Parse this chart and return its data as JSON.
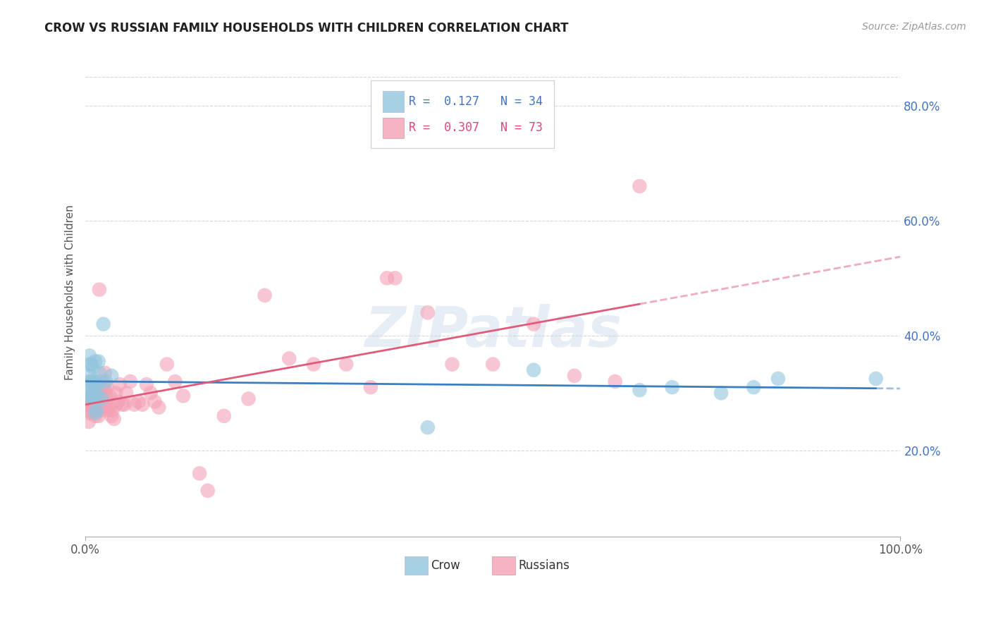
{
  "title": "CROW VS RUSSIAN FAMILY HOUSEHOLDS WITH CHILDREN CORRELATION CHART",
  "source": "Source: ZipAtlas.com",
  "ylabel": "Family Households with Children",
  "watermark": "ZIPatlas",
  "crow_R": 0.127,
  "crow_N": 34,
  "russian_R": 0.307,
  "russian_N": 73,
  "crow_color": "#92c5de",
  "russian_color": "#f4a0b5",
  "crow_line_color": "#3a7fc1",
  "russian_line_color": "#e05a7a",
  "background_color": "#ffffff",
  "grid_color": "#d8d8d8",
  "xlim": [
    0.0,
    1.0
  ],
  "ylim": [
    0.05,
    0.9
  ],
  "yticks": [
    0.2,
    0.4,
    0.6,
    0.8
  ],
  "ytick_labels": [
    "20.0%",
    "40.0%",
    "60.0%",
    "80.0%"
  ],
  "crow_x": [
    0.003,
    0.004,
    0.005,
    0.005,
    0.006,
    0.006,
    0.007,
    0.007,
    0.008,
    0.008,
    0.009,
    0.009,
    0.01,
    0.011,
    0.012,
    0.012,
    0.013,
    0.014,
    0.015,
    0.016,
    0.017,
    0.018,
    0.02,
    0.022,
    0.025,
    0.032,
    0.42,
    0.55,
    0.68,
    0.72,
    0.78,
    0.82,
    0.85,
    0.97
  ],
  "crow_y": [
    0.295,
    0.32,
    0.35,
    0.365,
    0.295,
    0.33,
    0.32,
    0.35,
    0.295,
    0.31,
    0.31,
    0.345,
    0.32,
    0.29,
    0.265,
    0.355,
    0.31,
    0.27,
    0.295,
    0.355,
    0.335,
    0.32,
    0.29,
    0.42,
    0.32,
    0.33,
    0.24,
    0.34,
    0.305,
    0.31,
    0.3,
    0.31,
    0.325,
    0.325
  ],
  "russian_x": [
    0.003,
    0.004,
    0.005,
    0.005,
    0.006,
    0.007,
    0.007,
    0.008,
    0.009,
    0.01,
    0.01,
    0.011,
    0.011,
    0.012,
    0.013,
    0.013,
    0.014,
    0.015,
    0.016,
    0.016,
    0.017,
    0.018,
    0.019,
    0.02,
    0.021,
    0.022,
    0.023,
    0.024,
    0.025,
    0.026,
    0.027,
    0.028,
    0.029,
    0.03,
    0.032,
    0.033,
    0.035,
    0.037,
    0.038,
    0.04,
    0.042,
    0.045,
    0.048,
    0.05,
    0.055,
    0.06,
    0.065,
    0.07,
    0.075,
    0.08,
    0.085,
    0.09,
    0.1,
    0.11,
    0.12,
    0.14,
    0.15,
    0.17,
    0.2,
    0.22,
    0.25,
    0.28,
    0.32,
    0.35,
    0.37,
    0.38,
    0.42,
    0.45,
    0.5,
    0.55,
    0.6,
    0.65,
    0.68
  ],
  "russian_y": [
    0.27,
    0.25,
    0.27,
    0.29,
    0.265,
    0.275,
    0.29,
    0.285,
    0.28,
    0.27,
    0.31,
    0.28,
    0.32,
    0.26,
    0.275,
    0.31,
    0.285,
    0.285,
    0.26,
    0.28,
    0.48,
    0.3,
    0.31,
    0.27,
    0.29,
    0.31,
    0.315,
    0.335,
    0.295,
    0.31,
    0.275,
    0.27,
    0.275,
    0.295,
    0.26,
    0.27,
    0.255,
    0.3,
    0.28,
    0.285,
    0.315,
    0.28,
    0.28,
    0.3,
    0.32,
    0.28,
    0.285,
    0.28,
    0.315,
    0.3,
    0.285,
    0.275,
    0.35,
    0.32,
    0.295,
    0.16,
    0.13,
    0.26,
    0.29,
    0.47,
    0.36,
    0.35,
    0.35,
    0.31,
    0.5,
    0.5,
    0.44,
    0.35,
    0.35,
    0.42,
    0.33,
    0.32,
    0.66
  ]
}
